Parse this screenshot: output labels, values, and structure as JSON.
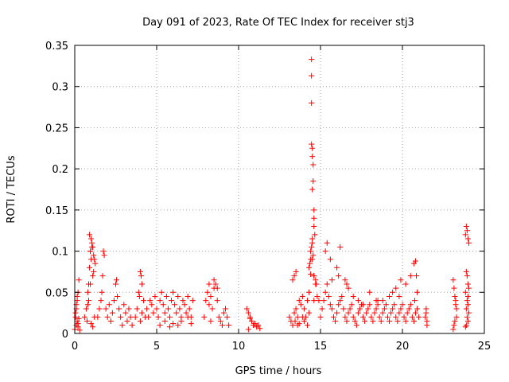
{
  "chart_data": {
    "type": "scatter",
    "title": "Day 091 of 2023, Rate Of TEC Index for receiver stj3",
    "xlabel": "GPS time / hours",
    "ylabel": "ROTI / TECUs",
    "xlim": [
      0,
      25
    ],
    "ylim": [
      0,
      0.35
    ],
    "xticks": [
      "0",
      "5",
      "10",
      "15",
      "20",
      "25"
    ],
    "yticks": [
      "0",
      "0.05",
      "0.1",
      "0.15",
      "0.2",
      "0.25",
      "0.3",
      "0.35"
    ],
    "grid": true,
    "marker": "plus",
    "color": "#ff0000",
    "series": [
      {
        "x": [
          0.0,
          0.05,
          0.1,
          0.15,
          0.2,
          0.25,
          0.1,
          0.15,
          0.2,
          0.05,
          0.1,
          0.2,
          0.3,
          0.25,
          0.15,
          0.6,
          0.7,
          0.8,
          0.85,
          0.9,
          0.95,
          1.0,
          1.05,
          1.1,
          1.15,
          1.2,
          1.25,
          0.9,
          0.95,
          1.0,
          1.05,
          1.1,
          0.85,
          0.8,
          1.0,
          1.1,
          1.2,
          0.75,
          0.95,
          1.15,
          1.4,
          1.5,
          1.6,
          1.7,
          1.75,
          1.8,
          1.65,
          1.9,
          2.0,
          2.1,
          2.2,
          2.3,
          2.4,
          2.5,
          2.55,
          2.6,
          2.7,
          2.8,
          2.9,
          3.0,
          3.1,
          3.2,
          3.3,
          3.4,
          3.5,
          3.7,
          3.8,
          3.9,
          4.0,
          4.05,
          4.1,
          4.2,
          4.3,
          3.95,
          4.0,
          4.1,
          4.4,
          4.5,
          4.6,
          4.7,
          4.8,
          4.9,
          5.0,
          5.1,
          5.2,
          5.3,
          5.4,
          5.5,
          5.6,
          5.7,
          5.8,
          5.9,
          6.0,
          6.1,
          6.2,
          6.3,
          6.4,
          6.5,
          6.6,
          6.7,
          6.8,
          6.9,
          7.0,
          7.1,
          7.2,
          5.2,
          5.5,
          5.8,
          6.0,
          6.3,
          6.5,
          6.9,
          7.1,
          7.9,
          8.0,
          8.1,
          8.2,
          8.3,
          8.4,
          8.5,
          8.6,
          8.7,
          8.8,
          8.9,
          9.0,
          9.1,
          9.2,
          9.3,
          9.4,
          8.2,
          8.5,
          8.7,
          8.3,
          10.5,
          10.6,
          10.7,
          10.8,
          10.9,
          11.0,
          11.1,
          11.2,
          11.3,
          10.6,
          10.7,
          13.1,
          13.2,
          13.3,
          13.4,
          13.5,
          13.6,
          13.7,
          13.8,
          13.9,
          14.0,
          14.1,
          14.2,
          14.3,
          14.4,
          14.5,
          14.6,
          14.7,
          14.8,
          14.9,
          14.45,
          14.45,
          14.45,
          14.45,
          14.5,
          14.5,
          14.55,
          14.55,
          14.5,
          14.6,
          14.6,
          14.6,
          14.65,
          14.5,
          14.45,
          14.55,
          14.4,
          14.35,
          14.3,
          14.6,
          14.7,
          14.75,
          14.4,
          14.5,
          14.6,
          13.4,
          13.5,
          13.3,
          13.45,
          13.6,
          13.7,
          13.9,
          14.0,
          14.2,
          14.3,
          15.0,
          15.1,
          15.2,
          15.3,
          15.4,
          15.5,
          15.6,
          15.7,
          15.8,
          15.9,
          16.0,
          16.1,
          16.2,
          16.3,
          16.4,
          16.5,
          16.6,
          16.7,
          16.8,
          16.9,
          17.0,
          17.1,
          17.2,
          17.3,
          17.4,
          17.5,
          17.6,
          17.7,
          17.8,
          17.9,
          18.0,
          18.1,
          18.2,
          18.3,
          18.4,
          18.5,
          18.6,
          18.7,
          18.8,
          18.9,
          19.0,
          19.1,
          19.2,
          19.3,
          19.4,
          19.5,
          19.6,
          19.7,
          19.8,
          19.9,
          20.0,
          20.1,
          20.2,
          20.3,
          20.4,
          20.5,
          20.6,
          20.7,
          20.8,
          20.9,
          21.0,
          15.3,
          15.6,
          16.0,
          16.2,
          16.5,
          16.7,
          17.0,
          17.3,
          17.6,
          18.0,
          18.4,
          18.8,
          19.2,
          19.6,
          19.9,
          20.2,
          20.5,
          20.7,
          20.8,
          20.85,
          20.9,
          20.75,
          15.4,
          15.7,
          16.1,
          16.6,
          18.5,
          19.4,
          19.8,
          21.4,
          21.45,
          21.5,
          21.5,
          21.45,
          23.1,
          23.15,
          23.2,
          23.25,
          23.3,
          23.2,
          23.15,
          23.1,
          23.3,
          23.25,
          23.85,
          23.9,
          23.95,
          24.0,
          24.05,
          23.9,
          23.95,
          24.0,
          24.05,
          23.85,
          23.95,
          24.0,
          23.9,
          24.05,
          23.95,
          24.0,
          23.9,
          23.85,
          24.0
        ],
        "y": [
          0.005,
          0.02,
          0.035,
          0.045,
          0.05,
          0.065,
          0.01,
          0.015,
          0.008,
          0.025,
          0.03,
          0.012,
          0.004,
          0.018,
          0.04,
          0.02,
          0.03,
          0.05,
          0.06,
          0.08,
          0.1,
          0.115,
          0.11,
          0.105,
          0.095,
          0.09,
          0.085,
          0.12,
          0.1,
          0.09,
          0.105,
          0.07,
          0.04,
          0.035,
          0.012,
          0.008,
          0.02,
          0.015,
          0.06,
          0.075,
          0.02,
          0.03,
          0.04,
          0.07,
          0.1,
          0.095,
          0.05,
          0.03,
          0.02,
          0.035,
          0.015,
          0.025,
          0.04,
          0.06,
          0.065,
          0.045,
          0.03,
          0.02,
          0.01,
          0.035,
          0.025,
          0.015,
          0.03,
          0.02,
          0.01,
          0.02,
          0.03,
          0.05,
          0.075,
          0.07,
          0.06,
          0.04,
          0.02,
          0.045,
          0.015,
          0.025,
          0.03,
          0.02,
          0.04,
          0.035,
          0.025,
          0.045,
          0.03,
          0.02,
          0.04,
          0.05,
          0.035,
          0.025,
          0.045,
          0.03,
          0.02,
          0.04,
          0.05,
          0.035,
          0.025,
          0.045,
          0.03,
          0.02,
          0.04,
          0.035,
          0.025,
          0.045,
          0.03,
          0.02,
          0.04,
          0.01,
          0.015,
          0.008,
          0.012,
          0.01,
          0.015,
          0.02,
          0.012,
          0.02,
          0.04,
          0.05,
          0.06,
          0.045,
          0.03,
          0.055,
          0.06,
          0.04,
          0.02,
          0.015,
          0.01,
          0.025,
          0.03,
          0.02,
          0.01,
          0.035,
          0.065,
          0.055,
          0.015,
          0.03,
          0.025,
          0.02,
          0.015,
          0.01,
          0.012,
          0.008,
          0.01,
          0.006,
          0.005,
          0.018,
          0.02,
          0.015,
          0.01,
          0.025,
          0.03,
          0.02,
          0.04,
          0.035,
          0.045,
          0.03,
          0.02,
          0.04,
          0.05,
          0.1,
          0.09,
          0.07,
          0.06,
          0.045,
          0.04,
          0.333,
          0.313,
          0.28,
          0.23,
          0.225,
          0.215,
          0.205,
          0.185,
          0.175,
          0.15,
          0.14,
          0.13,
          0.12,
          0.11,
          0.105,
          0.095,
          0.09,
          0.085,
          0.08,
          0.07,
          0.065,
          0.06,
          0.072,
          0.115,
          0.04,
          0.07,
          0.075,
          0.065,
          0.015,
          0.01,
          0.012,
          0.02,
          0.015,
          0.01,
          0.025,
          0.02,
          0.03,
          0.04,
          0.05,
          0.06,
          0.045,
          0.035,
          0.03,
          0.02,
          0.015,
          0.025,
          0.035,
          0.04,
          0.045,
          0.03,
          0.02,
          0.015,
          0.025,
          0.03,
          0.035,
          0.02,
          0.015,
          0.01,
          0.025,
          0.03,
          0.035,
          0.02,
          0.015,
          0.025,
          0.03,
          0.035,
          0.02,
          0.015,
          0.025,
          0.03,
          0.035,
          0.02,
          0.015,
          0.025,
          0.03,
          0.035,
          0.02,
          0.015,
          0.025,
          0.03,
          0.035,
          0.02,
          0.015,
          0.025,
          0.03,
          0.035,
          0.02,
          0.015,
          0.025,
          0.03,
          0.035,
          0.02,
          0.015,
          0.025,
          0.03,
          0.02,
          0.1,
          0.09,
          0.08,
          0.105,
          0.065,
          0.055,
          0.045,
          0.04,
          0.035,
          0.05,
          0.04,
          0.04,
          0.045,
          0.055,
          0.065,
          0.06,
          0.07,
          0.085,
          0.088,
          0.07,
          0.05,
          0.04,
          0.11,
          0.065,
          0.07,
          0.06,
          0.04,
          0.05,
          0.045,
          0.02,
          0.03,
          0.015,
          0.01,
          0.025,
          0.065,
          0.055,
          0.045,
          0.035,
          0.02,
          0.015,
          0.01,
          0.005,
          0.03,
          0.04,
          0.12,
          0.13,
          0.125,
          0.115,
          0.11,
          0.075,
          0.07,
          0.06,
          0.055,
          0.05,
          0.04,
          0.035,
          0.03,
          0.025,
          0.02,
          0.015,
          0.01,
          0.008,
          0.045
        ]
      }
    ]
  }
}
